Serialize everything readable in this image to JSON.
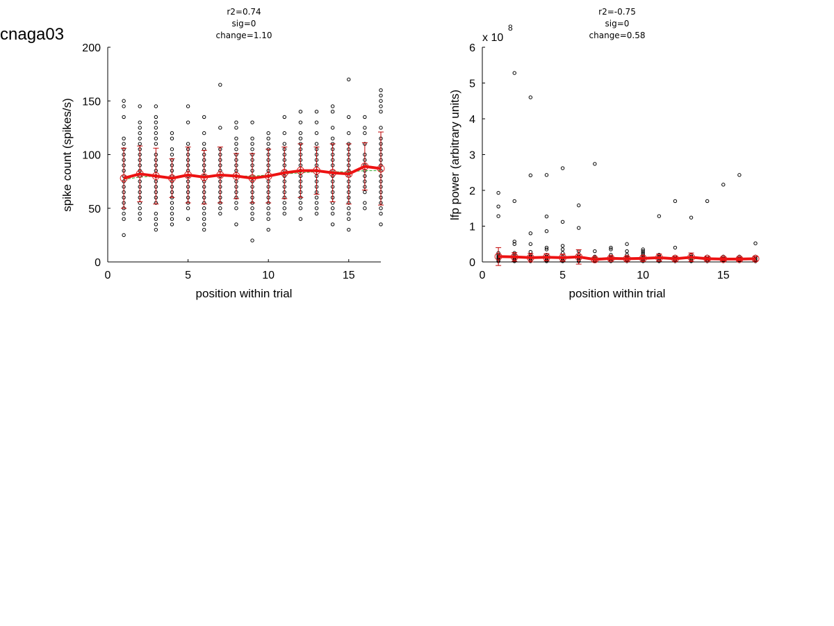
{
  "sheet_title": "cnaga03",
  "chart_data": [
    {
      "type": "scatter",
      "title_lines": [
        "r2=0.74",
        "sig=0",
        "change=1.10"
      ],
      "xlabel": "position within trial",
      "ylabel": "spike count (spikes/s)",
      "xlim": [
        0,
        17
      ],
      "ylim": [
        0,
        200
      ],
      "xticks": [
        "0",
        "5",
        "10",
        "15"
      ],
      "xtick_values": [
        0,
        5,
        10,
        15
      ],
      "yticks": [
        "0",
        "50",
        "100",
        "150",
        "200"
      ],
      "ytick_values": [
        0,
        50,
        100,
        150,
        200
      ],
      "exponent_label": "",
      "exponent_sup": "",
      "points": [
        {
          "x": 1,
          "ys": [
            25,
            40,
            45,
            50,
            55,
            60,
            65,
            70,
            75,
            80,
            85,
            90,
            95,
            100,
            105,
            110,
            115,
            135,
            145,
            150
          ]
        },
        {
          "x": 2,
          "ys": [
            40,
            45,
            50,
            55,
            60,
            65,
            70,
            75,
            80,
            85,
            90,
            95,
            100,
            105,
            110,
            115,
            120,
            125,
            130,
            145
          ]
        },
        {
          "x": 3,
          "ys": [
            30,
            35,
            40,
            45,
            55,
            60,
            65,
            70,
            75,
            80,
            85,
            90,
            95,
            100,
            110,
            115,
            120,
            125,
            130,
            135,
            145
          ]
        },
        {
          "x": 4,
          "ys": [
            35,
            40,
            45,
            50,
            55,
            60,
            65,
            70,
            75,
            80,
            85,
            90,
            95,
            100,
            105,
            115,
            120
          ]
        },
        {
          "x": 5,
          "ys": [
            40,
            50,
            55,
            60,
            65,
            70,
            75,
            80,
            85,
            90,
            95,
            100,
            105,
            110,
            130,
            145
          ]
        },
        {
          "x": 6,
          "ys": [
            30,
            35,
            40,
            45,
            50,
            55,
            60,
            65,
            70,
            75,
            80,
            85,
            90,
            95,
            100,
            105,
            110,
            120,
            135
          ]
        },
        {
          "x": 7,
          "ys": [
            45,
            50,
            55,
            60,
            65,
            70,
            75,
            80,
            85,
            90,
            95,
            100,
            105,
            125,
            165
          ]
        },
        {
          "x": 8,
          "ys": [
            35,
            50,
            55,
            60,
            65,
            70,
            75,
            80,
            85,
            90,
            95,
            100,
            105,
            110,
            115,
            125,
            130
          ]
        },
        {
          "x": 9,
          "ys": [
            20,
            40,
            45,
            50,
            55,
            60,
            65,
            70,
            75,
            80,
            85,
            90,
            95,
            100,
            105,
            110,
            115,
            130
          ]
        },
        {
          "x": 10,
          "ys": [
            30,
            40,
            45,
            50,
            55,
            60,
            65,
            70,
            75,
            80,
            85,
            90,
            95,
            100,
            105,
            110,
            115,
            120
          ]
        },
        {
          "x": 11,
          "ys": [
            45,
            50,
            55,
            60,
            65,
            70,
            75,
            80,
            85,
            90,
            95,
            100,
            105,
            110,
            120,
            135
          ]
        },
        {
          "x": 12,
          "ys": [
            40,
            50,
            55,
            60,
            65,
            70,
            75,
            80,
            85,
            90,
            95,
            100,
            105,
            110,
            115,
            120,
            130,
            140
          ]
        },
        {
          "x": 13,
          "ys": [
            45,
            50,
            55,
            60,
            65,
            70,
            75,
            80,
            85,
            90,
            95,
            100,
            105,
            110,
            120,
            130,
            140
          ]
        },
        {
          "x": 14,
          "ys": [
            35,
            45,
            50,
            55,
            60,
            65,
            70,
            75,
            80,
            85,
            90,
            95,
            100,
            105,
            110,
            115,
            125,
            140,
            145
          ]
        },
        {
          "x": 15,
          "ys": [
            30,
            40,
            45,
            50,
            55,
            60,
            65,
            70,
            75,
            80,
            85,
            90,
            95,
            100,
            105,
            110,
            120,
            135,
            170
          ]
        },
        {
          "x": 16,
          "ys": [
            50,
            55,
            65,
            70,
            75,
            80,
            85,
            90,
            95,
            100,
            110,
            120,
            125,
            135
          ]
        },
        {
          "x": 17,
          "ys": [
            35,
            45,
            50,
            55,
            60,
            65,
            70,
            75,
            80,
            85,
            90,
            95,
            100,
            105,
            110,
            115,
            125,
            140,
            145,
            150,
            155,
            160
          ]
        }
      ],
      "mean_x": [
        1,
        2,
        3,
        4,
        5,
        6,
        7,
        8,
        9,
        10,
        11,
        12,
        13,
        14,
        15,
        16,
        17
      ],
      "mean": [
        78,
        82,
        80,
        78,
        81,
        79,
        81,
        80,
        78,
        80,
        83,
        85,
        85,
        83,
        82,
        89,
        87
      ],
      "sd": [
        28,
        26,
        26,
        18,
        26,
        25,
        26,
        21,
        23,
        25,
        24,
        25,
        22,
        27,
        28,
        22,
        34
      ],
      "fit": [
        77,
        79,
        80,
        79,
        80,
        80,
        80,
        80,
        80,
        81,
        82,
        83,
        84,
        84,
        84,
        85,
        85
      ]
    },
    {
      "type": "scatter",
      "title_lines": [
        "r2=-0.75",
        "sig=0",
        "change=0.58"
      ],
      "xlabel": "position within trial",
      "ylabel": "lfp power (arbitrary units)",
      "xlim": [
        0,
        17
      ],
      "ylim": [
        0,
        6
      ],
      "xticks": [
        "0",
        "5",
        "10",
        "15"
      ],
      "xtick_values": [
        0,
        5,
        10,
        15
      ],
      "yticks": [
        "0",
        "1",
        "2",
        "3",
        "4",
        "5",
        "6"
      ],
      "ytick_values": [
        0,
        1,
        2,
        3,
        4,
        5,
        6
      ],
      "exponent_label": "x 10",
      "exponent_sup": "8",
      "points": [
        {
          "x": 1,
          "ys": [
            0.02,
            0.05,
            0.08,
            0.1,
            0.12,
            0.15,
            0.2,
            0.25,
            1.28,
            1.55,
            1.93
          ]
        },
        {
          "x": 2,
          "ys": [
            0.02,
            0.05,
            0.08,
            0.1,
            0.14,
            0.2,
            0.25,
            0.5,
            0.57,
            1.7,
            5.28
          ]
        },
        {
          "x": 3,
          "ys": [
            0.02,
            0.05,
            0.1,
            0.15,
            0.2,
            0.28,
            0.5,
            0.8,
            2.42,
            4.6
          ]
        },
        {
          "x": 4,
          "ys": [
            0.02,
            0.05,
            0.1,
            0.15,
            0.2,
            0.35,
            0.4,
            0.86,
            1.27,
            2.43
          ]
        },
        {
          "x": 5,
          "ys": [
            0.02,
            0.05,
            0.1,
            0.15,
            0.25,
            0.35,
            0.45,
            1.12,
            2.62
          ]
        },
        {
          "x": 6,
          "ys": [
            0.02,
            0.05,
            0.1,
            0.15,
            0.2,
            0.3,
            0.95,
            1.58
          ]
        },
        {
          "x": 7,
          "ys": [
            0.02,
            0.05,
            0.1,
            0.15,
            0.3,
            2.74
          ]
        },
        {
          "x": 8,
          "ys": [
            0.02,
            0.05,
            0.1,
            0.15,
            0.2,
            0.35,
            0.4
          ]
        },
        {
          "x": 9,
          "ys": [
            0.02,
            0.05,
            0.1,
            0.15,
            0.2,
            0.3,
            0.5
          ]
        },
        {
          "x": 10,
          "ys": [
            0.02,
            0.05,
            0.1,
            0.15,
            0.2,
            0.25,
            0.3,
            0.35
          ]
        },
        {
          "x": 11,
          "ys": [
            0.02,
            0.05,
            0.1,
            0.15,
            0.2,
            1.28
          ]
        },
        {
          "x": 12,
          "ys": [
            0.02,
            0.05,
            0.1,
            0.15,
            0.4,
            1.7
          ]
        },
        {
          "x": 13,
          "ys": [
            0.02,
            0.05,
            0.1,
            0.15,
            0.2,
            1.24
          ]
        },
        {
          "x": 14,
          "ys": [
            0.02,
            0.05,
            0.1,
            0.15,
            1.7
          ]
        },
        {
          "x": 15,
          "ys": [
            0.02,
            0.05,
            0.1,
            0.15,
            2.16
          ]
        },
        {
          "x": 16,
          "ys": [
            0.02,
            0.05,
            0.1,
            0.15,
            2.43
          ]
        },
        {
          "x": 17,
          "ys": [
            0.02,
            0.05,
            0.1,
            0.15,
            0.52
          ]
        }
      ],
      "mean_x": [
        1,
        2,
        3,
        4,
        5,
        6,
        7,
        8,
        9,
        10,
        11,
        12,
        13,
        14,
        15,
        16,
        17
      ],
      "mean": [
        0.15,
        0.14,
        0.12,
        0.13,
        0.12,
        0.14,
        0.07,
        0.1,
        0.09,
        0.1,
        0.12,
        0.09,
        0.13,
        0.09,
        0.08,
        0.08,
        0.09
      ],
      "sd": [
        0.25,
        0.12,
        0.12,
        0.1,
        0.1,
        0.2,
        0.06,
        0.06,
        0.06,
        0.07,
        0.1,
        0.06,
        0.12,
        0.05,
        0.05,
        0.05,
        0.06
      ],
      "fit": [
        0.14,
        0.14,
        0.13,
        0.13,
        0.12,
        0.12,
        0.11,
        0.11,
        0.11,
        0.1,
        0.1,
        0.1,
        0.09,
        0.09,
        0.09,
        0.08,
        0.08
      ]
    }
  ]
}
